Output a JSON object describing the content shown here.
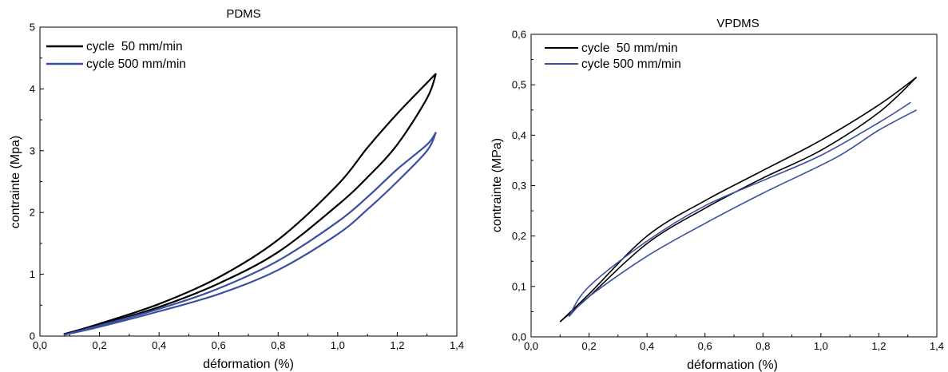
{
  "charts": [
    {
      "id": "pdms",
      "title": "PDMS",
      "xlabel": "déformation (%)",
      "ylabel": "contrainte (Mpa)",
      "xticks": [
        "0,0",
        "0,2",
        "0,4",
        "0,6",
        "0,8",
        "1,0",
        "1,2",
        "1,4"
      ],
      "yticks": [
        "0",
        "1",
        "2",
        "3",
        "4",
        "5"
      ],
      "legend": [
        "cycle  50 mm/min",
        "cycle 500 mm/min"
      ]
    },
    {
      "id": "vpdms",
      "title": "VPDMS",
      "xlabel": "déformation (%)",
      "ylabel": "contrainte (MPa)",
      "xticks": [
        "0,0",
        "0,2",
        "0,4",
        "0,6",
        "0,8",
        "1,0",
        "1,2",
        "1,4"
      ],
      "yticks": [
        "0,0",
        "0,1",
        "0,2",
        "0,3",
        "0,4",
        "0,5",
        "0,6"
      ],
      "legend": [
        "cycle  50 mm/min",
        "cycle 500 mm/min"
      ]
    }
  ],
  "chart_data": [
    {
      "type": "line",
      "title": "PDMS",
      "xlabel": "déformation (%)",
      "ylabel": "contrainte (Mpa)",
      "xlim": [
        0,
        1.4
      ],
      "ylim": [
        0,
        5
      ],
      "grid": false,
      "legend_position": "top-left",
      "series": [
        {
          "name": "cycle  50 mm/min",
          "color": "#000000",
          "loading": [
            [
              0.08,
              0.03
            ],
            [
              0.2,
              0.2
            ],
            [
              0.4,
              0.52
            ],
            [
              0.6,
              0.95
            ],
            [
              0.8,
              1.56
            ],
            [
              1.0,
              2.45
            ],
            [
              1.1,
              3.05
            ],
            [
              1.2,
              3.6
            ],
            [
              1.3,
              4.1
            ],
            [
              1.33,
              4.25
            ]
          ],
          "unloading": [
            [
              1.33,
              4.25
            ],
            [
              1.3,
              3.85
            ],
            [
              1.2,
              3.1
            ],
            [
              1.1,
              2.57
            ],
            [
              1.0,
              2.12
            ],
            [
              0.8,
              1.36
            ],
            [
              0.6,
              0.85
            ],
            [
              0.4,
              0.47
            ],
            [
              0.2,
              0.18
            ],
            [
              0.08,
              0.03
            ]
          ]
        },
        {
          "name": "cycle 500 mm/min",
          "color": "#3a4fa0",
          "loading": [
            [
              0.08,
              0.02
            ],
            [
              0.2,
              0.17
            ],
            [
              0.4,
              0.44
            ],
            [
              0.6,
              0.77
            ],
            [
              0.8,
              1.22
            ],
            [
              1.0,
              1.85
            ],
            [
              1.1,
              2.25
            ],
            [
              1.2,
              2.7
            ],
            [
              1.3,
              3.1
            ],
            [
              1.33,
              3.3
            ]
          ],
          "unloading": [
            [
              1.33,
              3.3
            ],
            [
              1.3,
              3.0
            ],
            [
              1.2,
              2.5
            ],
            [
              1.1,
              2.05
            ],
            [
              1.0,
              1.65
            ],
            [
              0.8,
              1.07
            ],
            [
              0.6,
              0.68
            ],
            [
              0.4,
              0.4
            ],
            [
              0.2,
              0.15
            ],
            [
              0.08,
              0.02
            ]
          ]
        }
      ]
    },
    {
      "type": "line",
      "title": "VPDMS",
      "xlabel": "déformation (%)",
      "ylabel": "contrainte (MPa)",
      "xlim": [
        0,
        1.4
      ],
      "ylim": [
        0,
        0.6
      ],
      "grid": false,
      "legend_position": "top-left",
      "series": [
        {
          "name": "cycle  50 mm/min",
          "color": "#000000",
          "loading": [
            [
              0.1,
              0.03
            ],
            [
              0.2,
              0.085
            ],
            [
              0.4,
              0.2
            ],
            [
              0.6,
              0.27
            ],
            [
              0.8,
              0.33
            ],
            [
              1.0,
              0.39
            ],
            [
              1.2,
              0.46
            ],
            [
              1.33,
              0.515
            ]
          ],
          "unloading": [
            [
              1.33,
              0.515
            ],
            [
              1.2,
              0.445
            ],
            [
              1.0,
              0.37
            ],
            [
              0.8,
              0.315
            ],
            [
              0.6,
              0.255
            ],
            [
              0.4,
              0.185
            ],
            [
              0.2,
              0.08
            ],
            [
              0.1,
              0.03
            ]
          ]
        },
        {
          "name": "cycle 500 mm/min",
          "color": "#3a4fa0",
          "loading": [
            [
              0.13,
              0.04
            ],
            [
              0.2,
              0.1
            ],
            [
              0.4,
              0.19
            ],
            [
              0.6,
              0.26
            ],
            [
              0.8,
              0.31
            ],
            [
              1.0,
              0.36
            ],
            [
              1.2,
              0.425
            ],
            [
              1.31,
              0.465
            ]
          ],
          "unloading": [
            [
              1.33,
              0.45
            ],
            [
              1.2,
              0.41
            ],
            [
              1.05,
              0.355
            ],
            [
              0.8,
              0.285
            ],
            [
              0.6,
              0.225
            ],
            [
              0.4,
              0.16
            ],
            [
              0.2,
              0.08
            ],
            [
              0.13,
              0.04
            ]
          ]
        }
      ]
    }
  ]
}
